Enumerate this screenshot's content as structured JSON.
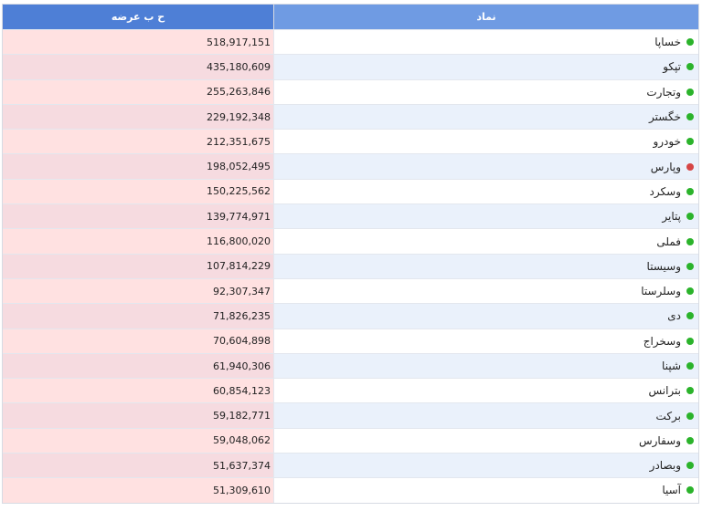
{
  "table": {
    "headers": {
      "value": "ح ب عرضه",
      "symbol": "نماد"
    },
    "status_colors": {
      "up": "#2bb32b",
      "down": "#d64545"
    },
    "rows": [
      {
        "symbol": "خساپا",
        "value": "518,917,151",
        "status": "up"
      },
      {
        "symbol": "تپکو",
        "value": "435,180,609",
        "status": "up"
      },
      {
        "symbol": "وتجارت",
        "value": "255,263,846",
        "status": "up"
      },
      {
        "symbol": "خگستر",
        "value": "229,192,348",
        "status": "up"
      },
      {
        "symbol": "خودرو",
        "value": "212,351,675",
        "status": "up"
      },
      {
        "symbol": "وپارس",
        "value": "198,052,495",
        "status": "down"
      },
      {
        "symbol": "وسکرد",
        "value": "150,225,562",
        "status": "up"
      },
      {
        "symbol": "پتایر",
        "value": "139,774,971",
        "status": "up"
      },
      {
        "symbol": "فملی",
        "value": "116,800,020",
        "status": "up"
      },
      {
        "symbol": "وسیستا",
        "value": "107,814,229",
        "status": "up"
      },
      {
        "symbol": "وسلرستا",
        "value": "92,307,347",
        "status": "up"
      },
      {
        "symbol": "دی",
        "value": "71,826,235",
        "status": "up"
      },
      {
        "symbol": "وسخراج",
        "value": "70,604,898",
        "status": "up"
      },
      {
        "symbol": "شپنا",
        "value": "61,940,306",
        "status": "up"
      },
      {
        "symbol": "بترانس",
        "value": "60,854,123",
        "status": "up"
      },
      {
        "symbol": "برکت",
        "value": "59,182,771",
        "status": "up"
      },
      {
        "symbol": "وسفارس",
        "value": "59,048,062",
        "status": "up"
      },
      {
        "symbol": "وبصادر",
        "value": "51,637,374",
        "status": "up"
      },
      {
        "symbol": "آسیا",
        "value": "51,309,610",
        "status": "up"
      }
    ]
  }
}
